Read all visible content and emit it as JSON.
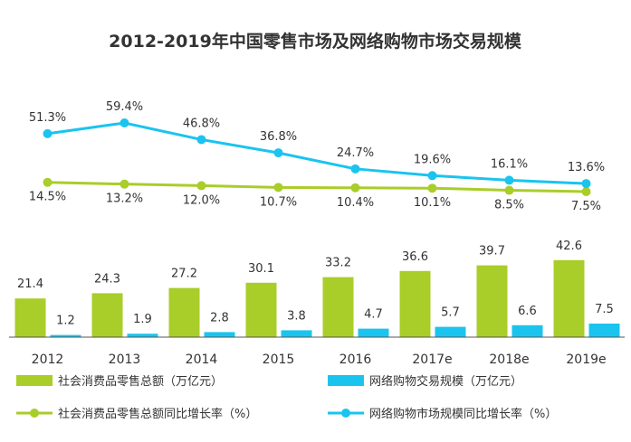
{
  "chart_data": {
    "type": "bar+line",
    "title": "2012-2019年中国零售市场及网络购物市场交易规模",
    "categories": [
      "2012",
      "2013",
      "2014",
      "2015",
      "2016",
      "2017e",
      "2018e",
      "2019e"
    ],
    "bars": [
      {
        "name": "社会消费品零售总额（万亿元）",
        "color": "#a9cd29",
        "values": [
          21.4,
          24.3,
          27.2,
          30.1,
          33.2,
          36.6,
          39.7,
          42.6
        ],
        "labels": [
          "21.4",
          "24.3",
          "27.2",
          "30.1",
          "33.2",
          "36.6",
          "39.7",
          "42.6"
        ]
      },
      {
        "name": "网络购物交易规模（万亿元）",
        "color": "#1ac4ef",
        "values": [
          1.2,
          1.9,
          2.8,
          3.8,
          4.7,
          5.7,
          6.6,
          7.5
        ],
        "labels": [
          "1.2",
          "1.9",
          "2.8",
          "3.8",
          "4.7",
          "5.7",
          "6.6",
          "7.5"
        ]
      }
    ],
    "lines": [
      {
        "name": "社会消费品零售总额同比增长率（%）",
        "color": "#a9cd29",
        "values": [
          14.5,
          13.2,
          12.0,
          10.7,
          10.4,
          10.1,
          8.5,
          7.5
        ],
        "labels": [
          "14.5%",
          "13.2%",
          "12.0%",
          "10.7%",
          "10.4%",
          "10.1%",
          "8.5%",
          "7.5%"
        ]
      },
      {
        "name": "网络购物市场规模同比增长率（%）",
        "color": "#1ac4ef",
        "values": [
          51.3,
          59.4,
          46.8,
          36.8,
          24.7,
          19.6,
          16.1,
          13.6
        ],
        "labels": [
          "51.3%",
          "59.4%",
          "46.8%",
          "36.8%",
          "24.7%",
          "19.6%",
          "16.1%",
          "13.6%"
        ]
      }
    ],
    "legend_position": "bottom",
    "grid": false
  }
}
